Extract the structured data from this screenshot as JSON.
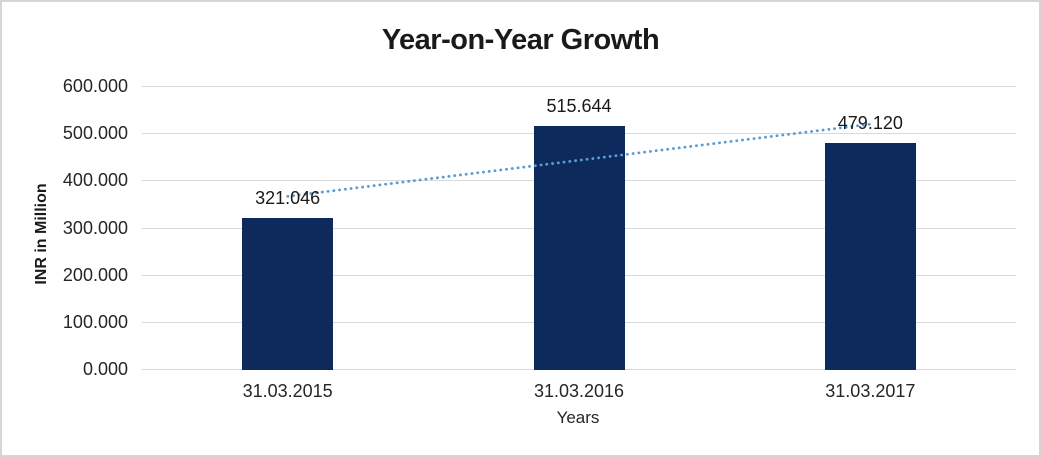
{
  "frame": {
    "background_color": "#ffffff",
    "border_color": "#d5d5d5"
  },
  "chart_data": {
    "type": "bar",
    "title": "Year-on-Year Growth",
    "xlabel": "Years",
    "ylabel": "INR in Million",
    "categories": [
      "31.03.2015",
      "31.03.2016",
      "31.03.2017"
    ],
    "values": [
      321.046,
      515.644,
      479.12
    ],
    "data_labels": [
      "321.046",
      "515.644",
      "479.120"
    ],
    "ylim": [
      0,
      600
    ],
    "ytick_values": [
      0,
      100,
      200,
      300,
      400,
      500,
      600
    ],
    "ytick_labels": [
      "0.000",
      "100.000",
      "200.000",
      "300.000",
      "400.000",
      "500.000",
      "600.000"
    ],
    "grid": "horizontal",
    "legend": "none",
    "bar_color": "#0e2a5c",
    "gridline_color": "#d9d9d9",
    "trendline": {
      "type": "linear",
      "style": "dotted",
      "color": "#5b9bd5",
      "start_value": 366,
      "end_value": 519
    }
  }
}
